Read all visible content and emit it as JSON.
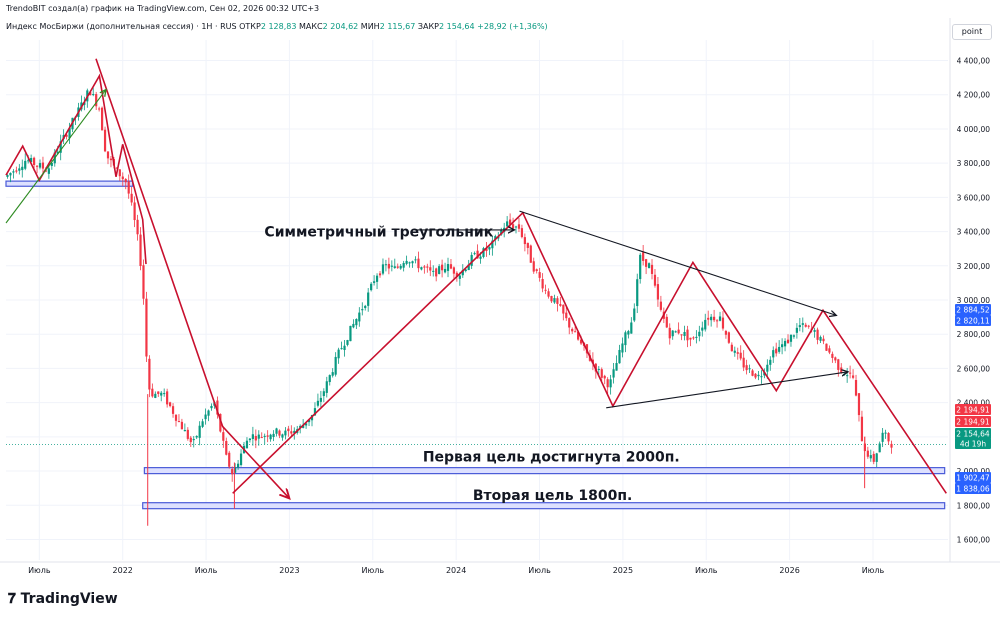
{
  "header": {
    "creator_line": "TrendoBIT создал(а) график на TradingView.com, Сен 02, 2026 00:32 UTC+3"
  },
  "symbol_bar": {
    "name": "Индекс МосБиржи (дополнительная сессия) · 1Н · RUS",
    "open_label": "ОТКР",
    "open_value": "2 128,83",
    "high_label": "МАКС",
    "high_value": "2 204,62",
    "low_label": "МИН",
    "low_value": "2 115,67",
    "close_label": "ЗАКР",
    "close_value": "2 154,64",
    "change_value": "+28,92 (+1,36%)"
  },
  "unit_button": "point",
  "brand": "TradingView",
  "colors": {
    "up": "#089981",
    "down": "#f23645",
    "pattern": "#c8102e",
    "support": "#4a5bd8",
    "support_fill": "#dde0ff",
    "trend_green": "#2e8b22",
    "badge_red": "#f23645",
    "badge_blue": "#2962ff",
    "badge_green": "#089981"
  },
  "chart_data": {
    "type": "candlestick",
    "y_axis": {
      "range": [
        1480,
        4520
      ],
      "ticks": [
        {
          "value": 4400,
          "label": "4 400,00"
        },
        {
          "value": 4200,
          "label": "4 200,00"
        },
        {
          "value": 4000,
          "label": "4 000,00"
        },
        {
          "value": 3800,
          "label": "3 800,00"
        },
        {
          "value": 3600,
          "label": "3 600,00"
        },
        {
          "value": 3400,
          "label": "3 400,00"
        },
        {
          "value": 3200,
          "label": "3 200,00"
        },
        {
          "value": 3000,
          "label": "3 000,00"
        },
        {
          "value": 2800,
          "label": "2 800,00"
        },
        {
          "value": 2600,
          "label": "2 600,00"
        },
        {
          "value": 2400,
          "label": "2 400,00"
        },
        {
          "value": 2200,
          "label": "2 200,00"
        },
        {
          "value": 2000,
          "label": "2 000,00"
        },
        {
          "value": 1800,
          "label": "1 800,00"
        },
        {
          "value": 1600,
          "label": "1 600,00"
        }
      ]
    },
    "x_axis": {
      "range": [
        2021.3,
        2026.95
      ],
      "ticks": [
        {
          "value": 2021.5,
          "label": "Июль"
        },
        {
          "value": 2022.0,
          "label": "2022"
        },
        {
          "value": 2022.5,
          "label": "Июль"
        },
        {
          "value": 2023.0,
          "label": "2023"
        },
        {
          "value": 2023.5,
          "label": "Июль"
        },
        {
          "value": 2024.0,
          "label": "2024"
        },
        {
          "value": 2024.5,
          "label": "Июль"
        },
        {
          "value": 2025.0,
          "label": "2025"
        },
        {
          "value": 2025.5,
          "label": "Июль"
        },
        {
          "value": 2026.0,
          "label": "2026"
        },
        {
          "value": 2026.5,
          "label": "Июль"
        }
      ]
    },
    "price_path": [
      [
        2021.3,
        3720
      ],
      [
        2021.42,
        3820
      ],
      [
        2021.55,
        3760
      ],
      [
        2021.62,
        3900
      ],
      [
        2021.72,
        4080
      ],
      [
        2021.8,
        4230
      ],
      [
        2021.86,
        4120
      ],
      [
        2021.9,
        3850
      ],
      [
        2021.96,
        3760
      ],
      [
        2022.02,
        3690
      ],
      [
        2022.06,
        3520
      ],
      [
        2022.1,
        3300
      ],
      [
        2022.13,
        2950
      ],
      [
        2022.15,
        2500
      ],
      [
        2022.18,
        2450
      ],
      [
        2022.24,
        2450
      ],
      [
        2022.3,
        2350
      ],
      [
        2022.36,
        2250
      ],
      [
        2022.42,
        2150
      ],
      [
        2022.48,
        2300
      ],
      [
        2022.55,
        2400
      ],
      [
        2022.62,
        2080
      ],
      [
        2022.66,
        1980
      ],
      [
        2022.7,
        2080
      ],
      [
        2022.76,
        2210
      ],
      [
        2022.82,
        2200
      ],
      [
        2022.9,
        2230
      ],
      [
        2022.98,
        2220
      ],
      [
        2023.06,
        2250
      ],
      [
        2023.14,
        2330
      ],
      [
        2023.22,
        2500
      ],
      [
        2023.3,
        2700
      ],
      [
        2023.38,
        2850
      ],
      [
        2023.46,
        3000
      ],
      [
        2023.52,
        3150
      ],
      [
        2023.58,
        3200
      ],
      [
        2023.64,
        3180
      ],
      [
        2023.7,
        3250
      ],
      [
        2023.78,
        3200
      ],
      [
        2023.86,
        3150
      ],
      [
        2023.94,
        3200
      ],
      [
        2024.02,
        3150
      ],
      [
        2024.1,
        3250
      ],
      [
        2024.2,
        3300
      ],
      [
        2024.3,
        3450
      ],
      [
        2024.38,
        3420
      ],
      [
        2024.46,
        3200
      ],
      [
        2024.54,
        3050
      ],
      [
        2024.62,
        2950
      ],
      [
        2024.68,
        2850
      ],
      [
        2024.76,
        2720
      ],
      [
        2024.84,
        2600
      ],
      [
        2024.92,
        2500
      ],
      [
        2025.0,
        2750
      ],
      [
        2025.06,
        2900
      ],
      [
        2025.1,
        3250
      ],
      [
        2025.16,
        3200
      ],
      [
        2025.22,
        2950
      ],
      [
        2025.28,
        2800
      ],
      [
        2025.34,
        2820
      ],
      [
        2025.42,
        2760
      ],
      [
        2025.5,
        2900
      ],
      [
        2025.58,
        2900
      ],
      [
        2025.66,
        2700
      ],
      [
        2025.74,
        2600
      ],
      [
        2025.82,
        2550
      ],
      [
        2025.9,
        2700
      ],
      [
        2025.98,
        2750
      ],
      [
        2026.06,
        2850
      ],
      [
        2026.14,
        2820
      ],
      [
        2026.22,
        2720
      ],
      [
        2026.3,
        2600
      ],
      [
        2026.38,
        2550
      ],
      [
        2026.44,
        2150
      ],
      [
        2026.5,
        2050
      ],
      [
        2026.56,
        2220
      ],
      [
        2026.62,
        2150
      ]
    ],
    "support_zones": [
      {
        "x1": 2021.3,
        "x2": 2022.06,
        "y1": 3665,
        "y2": 3695
      },
      {
        "x1": 2022.13,
        "x2": 2026.93,
        "y1": 1985,
        "y2": 2020
      },
      {
        "x1": 2022.12,
        "x2": 2026.93,
        "y1": 1780,
        "y2": 1815
      }
    ],
    "pattern_lines": [
      {
        "color": "red",
        "points": [
          [
            2021.3,
            3730
          ],
          [
            2021.4,
            3900
          ],
          [
            2021.5,
            3700
          ],
          [
            2021.86,
            4310
          ],
          [
            2021.96,
            3720
          ],
          [
            2022.0,
            3910
          ],
          [
            2022.12,
            3470
          ],
          [
            2022.14,
            3210
          ]
        ]
      },
      {
        "color": "red",
        "points": [
          [
            2021.84,
            4410
          ],
          [
            2022.6,
            2260
          ],
          [
            2023.0,
            1840
          ]
        ]
      },
      {
        "color": "red",
        "points": [
          [
            2022.66,
            1870
          ],
          [
            2024.4,
            3510
          ],
          [
            2024.94,
            2380
          ],
          [
            2025.42,
            3220
          ],
          [
            2025.92,
            2470
          ],
          [
            2026.2,
            2940
          ],
          [
            2026.94,
            1870
          ]
        ]
      },
      {
        "color": "black",
        "points": [
          [
            2024.38,
            3520
          ],
          [
            2026.28,
            2910
          ]
        ]
      },
      {
        "color": "black",
        "points": [
          [
            2024.9,
            2370
          ],
          [
            2026.35,
            2580
          ]
        ]
      },
      {
        "color": "green",
        "points": [
          [
            2021.3,
            3450
          ],
          [
            2021.9,
            4230
          ]
        ]
      },
      {
        "color": "black",
        "points": [
          [
            2023.75,
            3410
          ],
          [
            2024.35,
            3410
          ]
        ]
      }
    ],
    "annotations": [
      {
        "text": "Симметричный треугольник",
        "x": 2022.85,
        "y": 3400
      },
      {
        "text": "Первая цель достигнута 2000п.",
        "x": 2023.8,
        "y": 2085
      },
      {
        "text": "Вторая цель 1800п.",
        "x": 2024.1,
        "y": 1860
      }
    ],
    "price_badges": [
      {
        "label": "2 884,52",
        "value": 2884.52,
        "color": "blue"
      },
      {
        "label": "2 820,11",
        "value": 2820.11,
        "color": "blue"
      },
      {
        "label": "2 194,91",
        "value": 2194.91,
        "color": "red"
      },
      {
        "label": "2 194,91",
        "value": 2194.91,
        "color": "red"
      },
      {
        "label": "2 154,64",
        "value": 2154.64,
        "color": "green"
      },
      {
        "label": "4d 19h",
        "value": 2110,
        "color": "green"
      },
      {
        "label": "1 902,47",
        "value": 1902.47,
        "color": "blue"
      },
      {
        "label": "1 838,06",
        "value": 1838.06,
        "color": "blue"
      }
    ],
    "current_price": 2154.64
  }
}
